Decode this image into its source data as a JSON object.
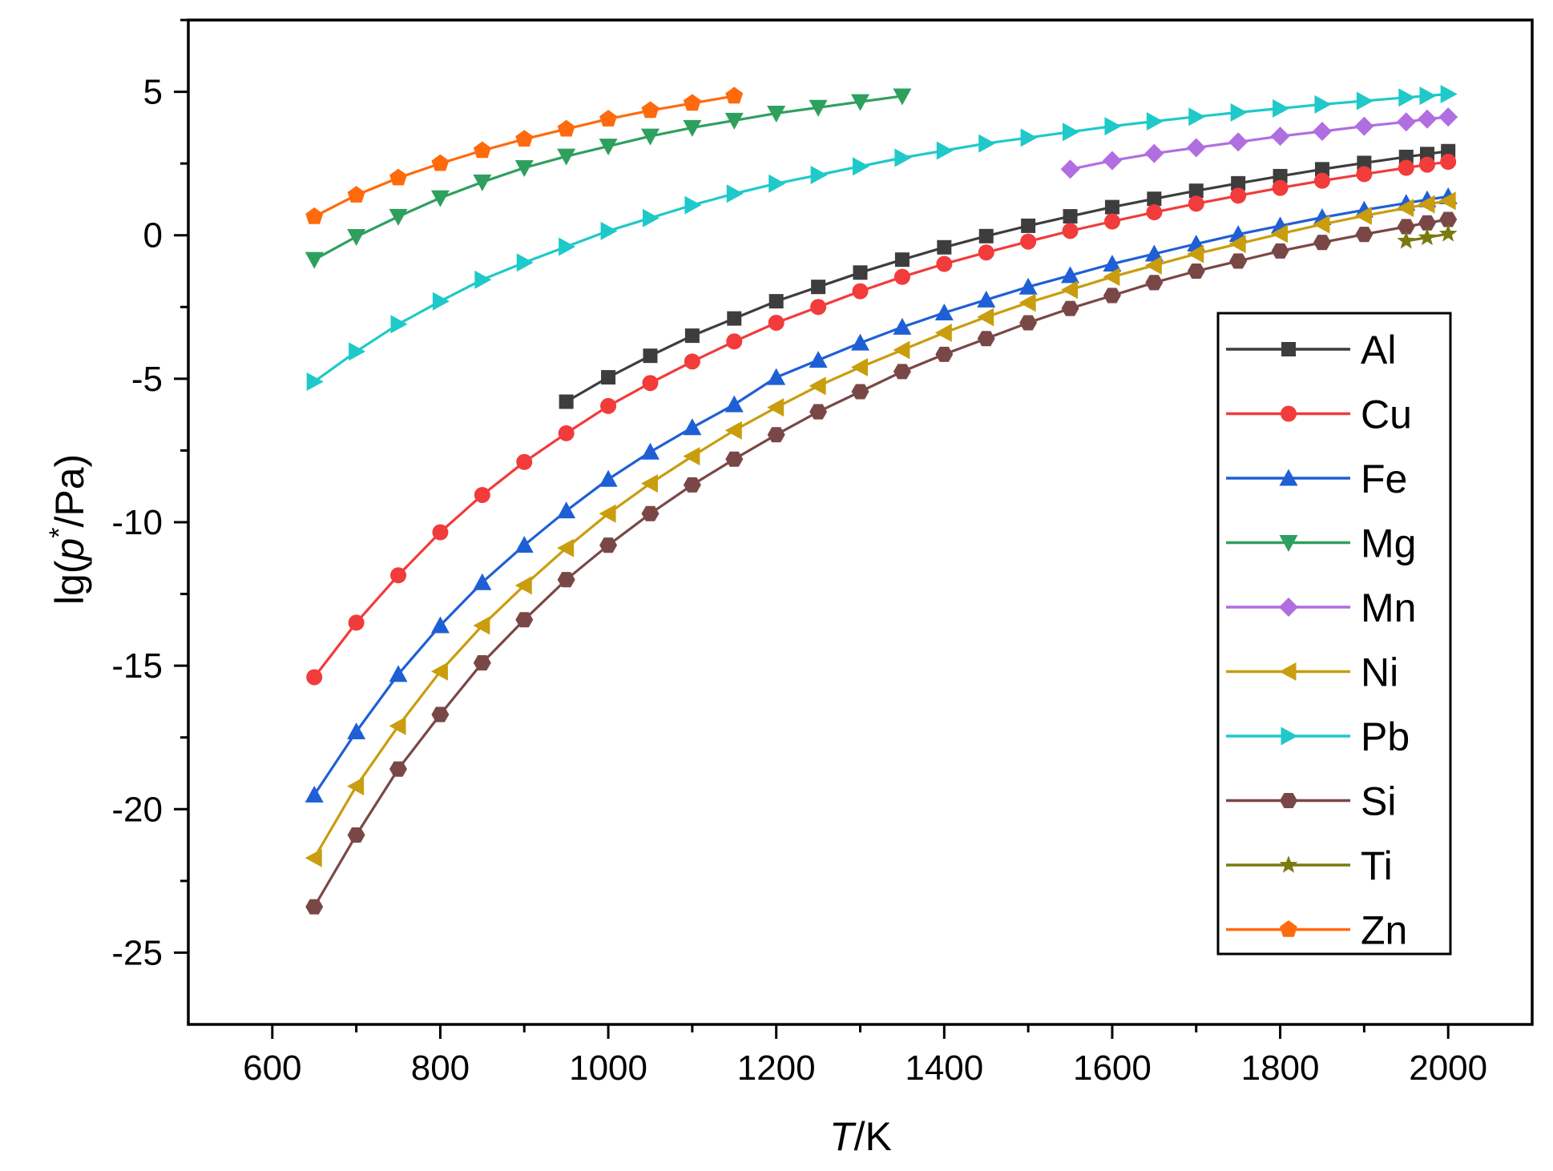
{
  "chart_data": {
    "type": "line",
    "title": "",
    "xlabel": {
      "italic": "T",
      "rest": "/K"
    },
    "ylabel": {
      "pre": "lg(",
      "italic": "p",
      "sup": "*",
      "post": "/Pa)"
    },
    "xlim": [
      500,
      2100
    ],
    "ylim": [
      -27.5,
      7.5
    ],
    "xticks": [
      600,
      800,
      1000,
      1200,
      1400,
      1600,
      1800,
      2000
    ],
    "yticks": [
      -25,
      -20,
      -15,
      -10,
      -5,
      0,
      5
    ],
    "xtick_labels": [
      "600",
      "800",
      "1000",
      "1200",
      "1400",
      "1600",
      "1800",
      "2000"
    ],
    "ytick_labels": [
      "-25",
      "-20",
      "-15",
      "-10",
      "-5",
      "0",
      "5"
    ],
    "legend_position": "right",
    "series": [
      {
        "name": "Al",
        "color": "#3d3d3d",
        "marker": "square",
        "x": [
          950,
          1000,
          1050,
          1100,
          1150,
          1200,
          1250,
          1300,
          1350,
          1400,
          1450,
          1500,
          1550,
          1600,
          1650,
          1700,
          1750,
          1800,
          1850,
          1900,
          1950,
          1975,
          2000
        ],
        "y": [
          -5.8,
          -4.95,
          -4.2,
          -3.5,
          -2.9,
          -2.3,
          -1.8,
          -1.3,
          -0.85,
          -0.42,
          -0.03,
          0.33,
          0.66,
          0.98,
          1.27,
          1.55,
          1.81,
          2.06,
          2.3,
          2.52,
          2.73,
          2.83,
          2.93
        ]
      },
      {
        "name": "Cu",
        "color": "#f23b3b",
        "marker": "circle",
        "x": [
          650,
          700,
          750,
          800,
          850,
          900,
          950,
          1000,
          1050,
          1100,
          1150,
          1200,
          1250,
          1300,
          1350,
          1400,
          1450,
          1500,
          1550,
          1600,
          1650,
          1700,
          1750,
          1800,
          1850,
          1900,
          1950,
          1975,
          2000
        ],
        "y": [
          -15.4,
          -13.5,
          -11.85,
          -10.35,
          -9.05,
          -7.9,
          -6.9,
          -5.95,
          -5.15,
          -4.4,
          -3.7,
          -3.05,
          -2.5,
          -1.95,
          -1.45,
          -1.0,
          -0.6,
          -0.22,
          0.15,
          0.48,
          0.8,
          1.1,
          1.38,
          1.65,
          1.9,
          2.13,
          2.35,
          2.46,
          2.56
        ]
      },
      {
        "name": "Fe",
        "color": "#1f5fd6",
        "marker": "triangle-up",
        "x": [
          650,
          700,
          750,
          800,
          850,
          900,
          950,
          1000,
          1050,
          1100,
          1150,
          1200,
          1250,
          1300,
          1350,
          1400,
          1450,
          1500,
          1550,
          1600,
          1650,
          1700,
          1750,
          1800,
          1850,
          1900,
          1950,
          1975,
          2000
        ],
        "y": [
          -19.5,
          -17.3,
          -15.3,
          -13.6,
          -12.1,
          -10.8,
          -9.6,
          -8.5,
          -7.55,
          -6.7,
          -5.9,
          -4.95,
          -4.35,
          -3.75,
          -3.2,
          -2.7,
          -2.25,
          -1.8,
          -1.4,
          -1.0,
          -0.65,
          -0.3,
          0.03,
          0.33,
          0.62,
          0.88,
          1.12,
          1.24,
          1.35
        ]
      },
      {
        "name": "Mg",
        "color": "#2ea05e",
        "marker": "triangle-down",
        "x": [
          650,
          700,
          750,
          800,
          850,
          900,
          950,
          1000,
          1050,
          1100,
          1150,
          1200,
          1250,
          1300,
          1350
        ],
        "y": [
          -0.85,
          -0.05,
          0.65,
          1.3,
          1.85,
          2.35,
          2.75,
          3.1,
          3.45,
          3.75,
          4.0,
          4.25,
          4.45,
          4.65,
          4.85
        ]
      },
      {
        "name": "Mn",
        "color": "#b16ee0",
        "marker": "diamond",
        "x": [
          1550,
          1600,
          1650,
          1700,
          1750,
          1800,
          1850,
          1900,
          1950,
          1975,
          2000
        ],
        "y": [
          2.3,
          2.6,
          2.85,
          3.05,
          3.25,
          3.45,
          3.62,
          3.8,
          3.95,
          4.05,
          4.12
        ]
      },
      {
        "name": "Ni",
        "color": "#c99d0e",
        "marker": "triangle-left",
        "x": [
          650,
          700,
          750,
          800,
          850,
          900,
          950,
          1000,
          1050,
          1100,
          1150,
          1200,
          1250,
          1300,
          1350,
          1400,
          1450,
          1500,
          1550,
          1600,
          1650,
          1700,
          1750,
          1800,
          1850,
          1900,
          1950,
          1975,
          2000
        ],
        "y": [
          -21.7,
          -19.2,
          -17.1,
          -15.2,
          -13.6,
          -12.2,
          -10.9,
          -9.7,
          -8.65,
          -7.7,
          -6.8,
          -6.0,
          -5.25,
          -4.6,
          -4.0,
          -3.4,
          -2.85,
          -2.35,
          -1.9,
          -1.45,
          -1.05,
          -0.65,
          -0.3,
          0.05,
          0.38,
          0.68,
          0.95,
          1.08,
          1.2
        ]
      },
      {
        "name": "Pb",
        "color": "#1fc9c9",
        "marker": "triangle-right",
        "x": [
          650,
          700,
          750,
          800,
          850,
          900,
          950,
          1000,
          1050,
          1100,
          1150,
          1200,
          1250,
          1300,
          1350,
          1400,
          1450,
          1500,
          1550,
          1600,
          1650,
          1700,
          1750,
          1800,
          1850,
          1900,
          1950,
          1975,
          2000
        ],
        "y": [
          -5.1,
          -4.05,
          -3.1,
          -2.3,
          -1.55,
          -0.95,
          -0.4,
          0.15,
          0.6,
          1.05,
          1.45,
          1.8,
          2.1,
          2.4,
          2.7,
          2.95,
          3.2,
          3.4,
          3.6,
          3.8,
          3.97,
          4.13,
          4.28,
          4.42,
          4.56,
          4.68,
          4.8,
          4.86,
          4.92
        ]
      },
      {
        "name": "Si",
        "color": "#7a4747",
        "marker": "hexagon",
        "x": [
          650,
          700,
          750,
          800,
          850,
          900,
          950,
          1000,
          1050,
          1100,
          1150,
          1200,
          1250,
          1300,
          1350,
          1400,
          1450,
          1500,
          1550,
          1600,
          1650,
          1700,
          1750,
          1800,
          1850,
          1900,
          1950,
          1975,
          2000
        ],
        "y": [
          -23.4,
          -20.9,
          -18.6,
          -16.7,
          -14.9,
          -13.4,
          -12.0,
          -10.8,
          -9.7,
          -8.7,
          -7.8,
          -6.95,
          -6.15,
          -5.45,
          -4.75,
          -4.15,
          -3.6,
          -3.05,
          -2.55,
          -2.1,
          -1.65,
          -1.25,
          -0.9,
          -0.55,
          -0.25,
          0.03,
          0.3,
          0.43,
          0.55
        ]
      },
      {
        "name": "Ti",
        "color": "#7a7a10",
        "marker": "star",
        "x": [
          1950,
          1975,
          2000
        ],
        "y": [
          -0.2,
          -0.08,
          0.05
        ]
      },
      {
        "name": "Zn",
        "color": "#ff6a0d",
        "marker": "pentagon",
        "x": [
          650,
          700,
          750,
          800,
          850,
          900,
          950,
          1000,
          1050,
          1100,
          1150
        ],
        "y": [
          0.65,
          1.4,
          2.0,
          2.5,
          2.95,
          3.35,
          3.7,
          4.05,
          4.35,
          4.6,
          4.85
        ]
      }
    ]
  }
}
